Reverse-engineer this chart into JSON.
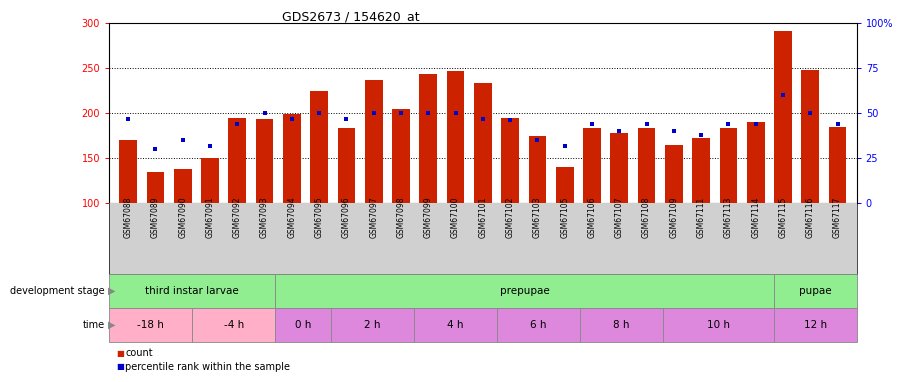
{
  "title": "GDS2673 / 154620_at",
  "samples": [
    "GSM67088",
    "GSM67089",
    "GSM67090",
    "GSM67091",
    "GSM67092",
    "GSM67093",
    "GSM67094",
    "GSM67095",
    "GSM67096",
    "GSM67097",
    "GSM67098",
    "GSM67099",
    "GSM67100",
    "GSM67101",
    "GSM67102",
    "GSM67103",
    "GSM67105",
    "GSM67106",
    "GSM67107",
    "GSM67108",
    "GSM67109",
    "GSM67111",
    "GSM67113",
    "GSM67114",
    "GSM67115",
    "GSM67116",
    "GSM67117"
  ],
  "count_values": [
    170,
    135,
    138,
    150,
    195,
    193,
    199,
    225,
    183,
    237,
    205,
    244,
    247,
    234,
    195,
    175,
    140,
    183,
    178,
    183,
    165,
    172,
    183,
    190,
    291,
    248,
    185
  ],
  "percentile_values": [
    47,
    30,
    35,
    32,
    44,
    50,
    47,
    50,
    47,
    50,
    50,
    50,
    50,
    47,
    46,
    35,
    32,
    44,
    40,
    44,
    40,
    38,
    44,
    44,
    60,
    50,
    44
  ],
  "ylim_left": [
    100,
    300
  ],
  "ylim_right": [
    0,
    100
  ],
  "yticks_left": [
    100,
    150,
    200,
    250,
    300
  ],
  "yticks_right": [
    0,
    25,
    50,
    75,
    100
  ],
  "bar_color": "#CC2200",
  "percentile_color": "#0000CC",
  "bar_width": 0.65,
  "background_color": "#ffffff",
  "xticklabel_bg": "#d0d0d0",
  "dev_stages": [
    {
      "label": "third instar larvae",
      "start": 0,
      "end": 6,
      "color": "#90EE90"
    },
    {
      "label": "prepupae",
      "start": 6,
      "end": 24,
      "color": "#90EE90"
    },
    {
      "label": "pupae",
      "start": 24,
      "end": 27,
      "color": "#90EE90"
    }
  ],
  "time_groups": [
    {
      "label": "-18 h",
      "start": 0,
      "end": 3,
      "color": "#FFB0C8"
    },
    {
      "label": "-4 h",
      "start": 3,
      "end": 6,
      "color": "#FFB0C8"
    },
    {
      "label": "0 h",
      "start": 6,
      "end": 8,
      "color": "#DD88DD"
    },
    {
      "label": "2 h",
      "start": 8,
      "end": 11,
      "color": "#DD88DD"
    },
    {
      "label": "4 h",
      "start": 11,
      "end": 14,
      "color": "#DD88DD"
    },
    {
      "label": "6 h",
      "start": 14,
      "end": 17,
      "color": "#DD88DD"
    },
    {
      "label": "8 h",
      "start": 17,
      "end": 20,
      "color": "#DD88DD"
    },
    {
      "label": "10 h",
      "start": 20,
      "end": 24,
      "color": "#DD88DD"
    },
    {
      "label": "12 h",
      "start": 24,
      "end": 27,
      "color": "#DD88DD"
    }
  ],
  "legend_items": [
    {
      "color": "#CC2200",
      "label": "count"
    },
    {
      "color": "#0000CC",
      "label": "percentile rank within the sample"
    }
  ]
}
